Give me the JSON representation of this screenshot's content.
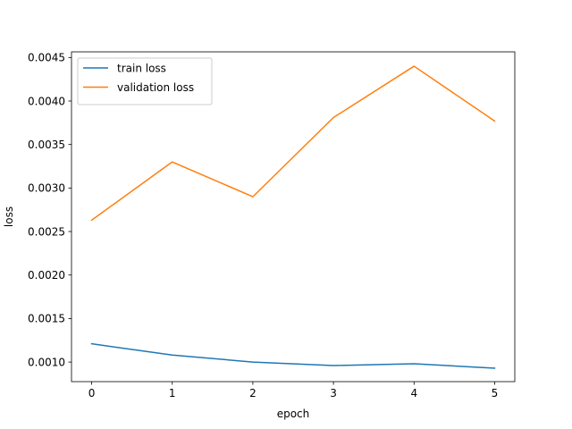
{
  "chart_data": {
    "type": "line",
    "title": "",
    "xlabel": "epoch",
    "ylabel": "loss",
    "x": [
      0,
      1,
      2,
      3,
      4,
      5
    ],
    "xlim": [
      -0.25,
      5.25
    ],
    "ylim": [
      0.000775,
      0.004565
    ],
    "xticks": [
      0,
      1,
      2,
      3,
      4,
      5
    ],
    "xtick_labels": [
      "0",
      "1",
      "2",
      "3",
      "4",
      "5"
    ],
    "yticks": [
      0.001,
      0.0015,
      0.002,
      0.0025,
      0.003,
      0.0035,
      0.004,
      0.0045
    ],
    "ytick_labels": [
      "0.0010",
      "0.0015",
      "0.0020",
      "0.0025",
      "0.0030",
      "0.0035",
      "0.0040",
      "0.0045"
    ],
    "grid": false,
    "legend_position": "top-left",
    "series": [
      {
        "name": "train loss",
        "color": "#1f77b4",
        "values": [
          0.00121,
          0.00108,
          0.001,
          0.00096,
          0.00098,
          0.00093
        ]
      },
      {
        "name": "validation loss",
        "color": "#ff7f0e",
        "values": [
          0.00263,
          0.0033,
          0.0029,
          0.00381,
          0.0044,
          0.00377
        ]
      }
    ]
  }
}
